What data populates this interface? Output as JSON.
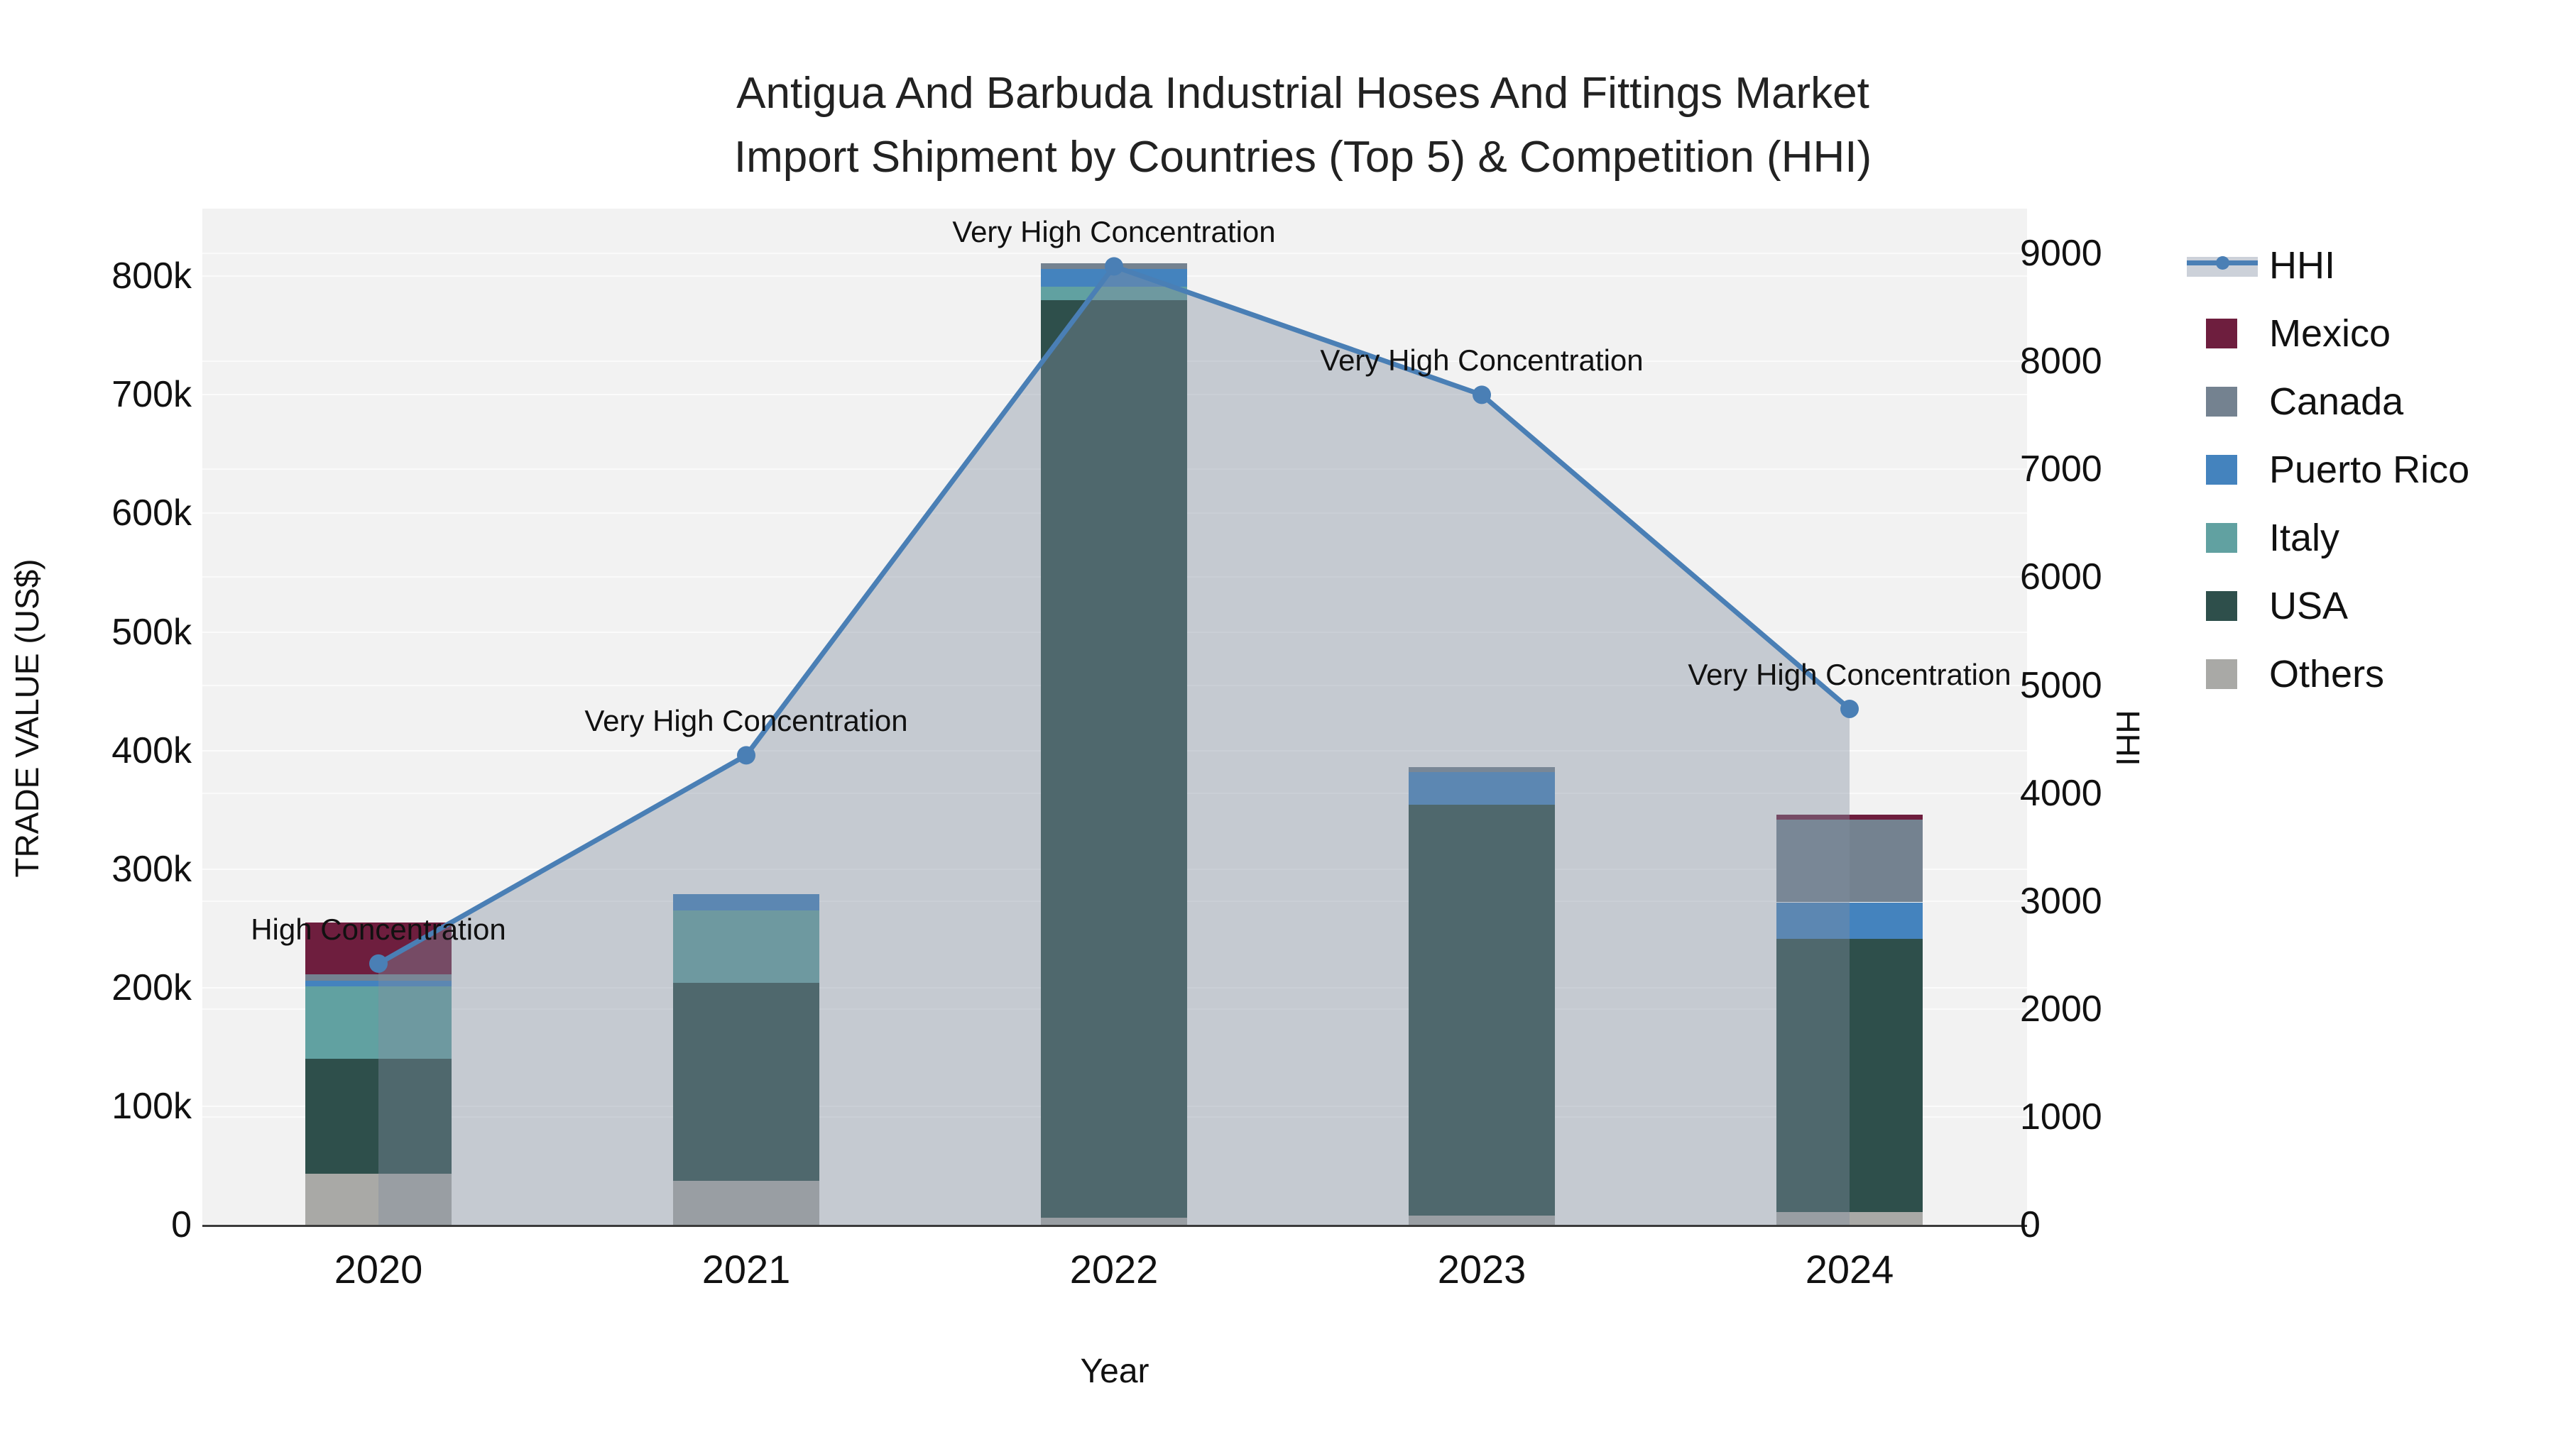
{
  "title": {
    "line1": "Antigua And Barbuda Industrial Hoses And Fittings Market",
    "line2": "Import Shipment by Countries (Top 5) & Competition (HHI)"
  },
  "axes": {
    "left_title": "TRADE VALUE (US$)",
    "right_title": "HHI",
    "x_title": "Year",
    "left_ticks": [
      {
        "value": 0,
        "label": "0"
      },
      {
        "value": 100000,
        "label": "100k"
      },
      {
        "value": 200000,
        "label": "200k"
      },
      {
        "value": 300000,
        "label": "300k"
      },
      {
        "value": 400000,
        "label": "400k"
      },
      {
        "value": 500000,
        "label": "500k"
      },
      {
        "value": 600000,
        "label": "600k"
      },
      {
        "value": 700000,
        "label": "700k"
      },
      {
        "value": 800000,
        "label": "800k"
      }
    ],
    "right_ticks": [
      {
        "value": 0,
        "label": "0"
      },
      {
        "value": 1000,
        "label": "1000"
      },
      {
        "value": 2000,
        "label": "2000"
      },
      {
        "value": 3000,
        "label": "3000"
      },
      {
        "value": 4000,
        "label": "4000"
      },
      {
        "value": 5000,
        "label": "5000"
      },
      {
        "value": 6000,
        "label": "6000"
      },
      {
        "value": 7000,
        "label": "7000"
      },
      {
        "value": 8000,
        "label": "8000"
      },
      {
        "value": 9000,
        "label": "9000"
      }
    ]
  },
  "legend": [
    {
      "label": "HHI",
      "type": "line",
      "color": "#4a7fb5"
    },
    {
      "label": "Mexico",
      "type": "box",
      "color": "#6e1e3e"
    },
    {
      "label": "Canada",
      "type": "box",
      "color": "#748290"
    },
    {
      "label": "Puerto Rico",
      "type": "box",
      "color": "#4483be"
    },
    {
      "label": "Italy",
      "type": "box",
      "color": "#61a1a1"
    },
    {
      "label": "USA",
      "type": "box",
      "color": "#2e4f4b"
    },
    {
      "label": "Others",
      "type": "box",
      "color": "#a9a9a6"
    }
  ],
  "chart_data": {
    "type": "bar",
    "subtype": "stacked-bars-with-line-overlay-dual-axis",
    "categories": [
      "2020",
      "2021",
      "2022",
      "2023",
      "2024"
    ],
    "title": "Antigua And Barbuda Industrial Hoses And Fittings Market Import Shipment by Countries (Top 5) & Competition (HHI)",
    "xlabel": "Year",
    "ylabel_left": "TRADE VALUE (US$)",
    "ylabel_right": "HHI",
    "ylim_left": [
      0,
      857000
    ],
    "ylim_right": [
      0,
      9415
    ],
    "grid": true,
    "legend_position": "right",
    "series": [
      {
        "name": "Others",
        "axis": "left",
        "color": "#a9a9a6",
        "values": [
          43000,
          37000,
          6000,
          8000,
          11000
        ]
      },
      {
        "name": "USA",
        "axis": "left",
        "color": "#2e4f4b",
        "values": [
          97000,
          167000,
          774000,
          346000,
          230000
        ]
      },
      {
        "name": "Italy",
        "axis": "left",
        "color": "#61a1a1",
        "values": [
          61000,
          61000,
          11000,
          0,
          0
        ]
      },
      {
        "name": "Puerto Rico",
        "axis": "left",
        "color": "#4483be",
        "values": [
          5000,
          14000,
          15000,
          28000,
          31000
        ]
      },
      {
        "name": "Canada",
        "axis": "left",
        "color": "#748290",
        "values": [
          5000,
          0,
          5000,
          4000,
          70000
        ]
      },
      {
        "name": "Mexico",
        "axis": "left",
        "color": "#6e1e3e",
        "values": [
          44000,
          0,
          0,
          0,
          4000
        ]
      }
    ],
    "bar_totals": [
      255000,
      279000,
      811000,
      386000,
      346000
    ],
    "line_series": {
      "name": "HHI",
      "axis": "right",
      "color": "#4a7fb5",
      "fill_color": "rgba(130,142,159,0.4)",
      "values": [
        2420,
        4350,
        8880,
        7690,
        4780
      ]
    },
    "annotations": [
      "High Concentration",
      "Very High Concentration",
      "Very High Concentration",
      "Very High Concentration",
      "Very High Concentration"
    ]
  },
  "colors": {
    "plot_background": "#f2f2f2",
    "figure_background": "#ffffff",
    "gridline": "#fbfbfb",
    "axis_line": "#3b3b3b",
    "text": "#111111",
    "hhi_line": "#4a7fb5",
    "hhi_fill": "rgba(130,142,159,0.4)"
  }
}
